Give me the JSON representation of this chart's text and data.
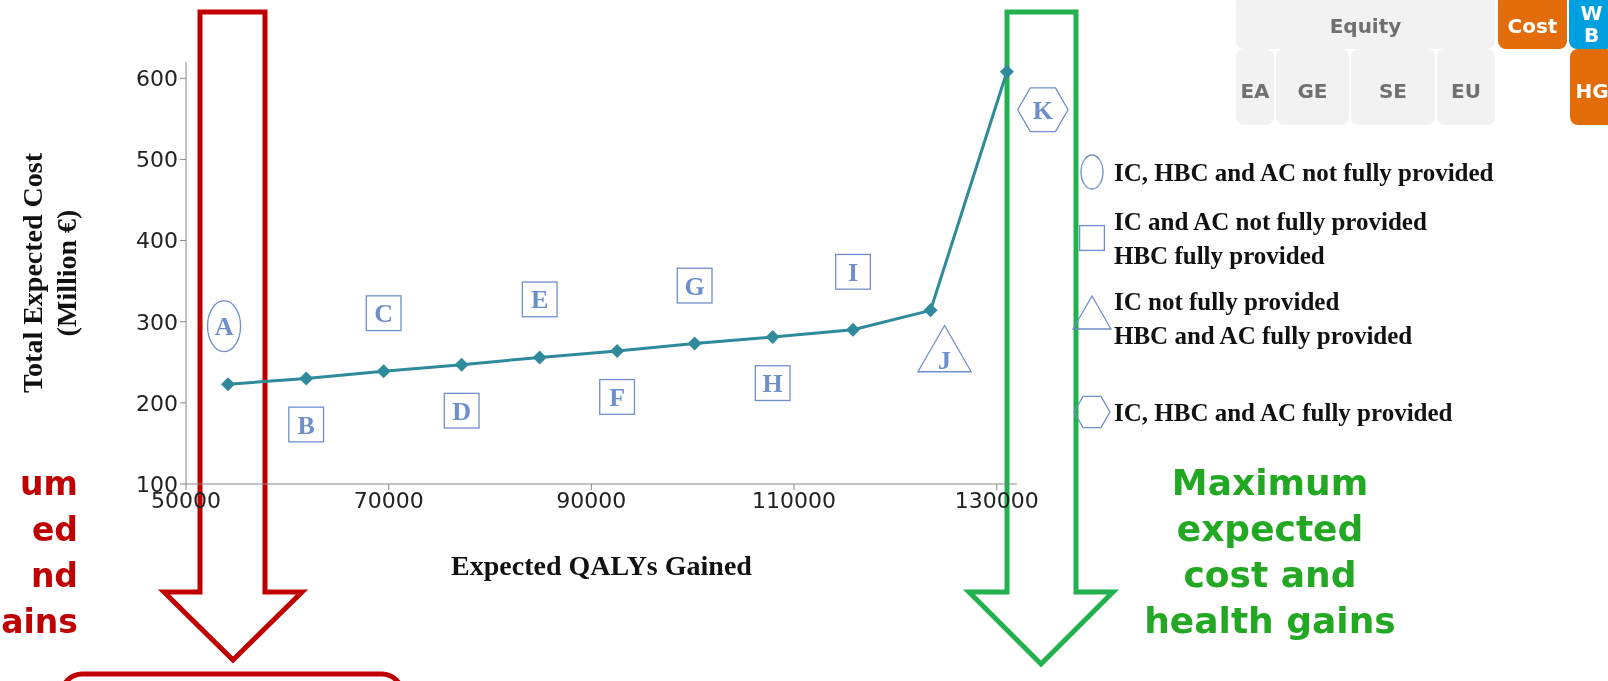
{
  "chart_data": {
    "type": "line",
    "x": [
      54150,
      61860,
      69500,
      77200,
      84900,
      92540,
      100190,
      107890,
      115820,
      123470,
      131000
    ],
    "series": [
      {
        "color": "#2f8a9c",
        "values": [
          223,
          230,
          239,
          247,
          256,
          264,
          273,
          281,
          290,
          314,
          608
        ]
      }
    ],
    "marker": "diamond",
    "xlabel": "Expected QALYs Gained",
    "ylabel": "Total Expected Cost\n(Million €)",
    "xlim": [
      50000,
      132000
    ],
    "xticks": [
      50000,
      70000,
      90000,
      110000,
      130000
    ],
    "ylim": [
      100,
      620
    ],
    "yticks": [
      100,
      200,
      300,
      400,
      500,
      600
    ],
    "annotations": [
      {
        "text": "A",
        "x": 54150,
        "y": 223
      },
      {
        "text": "B",
        "x": 61860,
        "y": 230
      },
      {
        "text": "C",
        "x": 69500,
        "y": 239
      },
      {
        "text": "D",
        "x": 77200,
        "y": 247
      },
      {
        "text": "E",
        "x": 84900,
        "y": 256
      },
      {
        "text": "F",
        "x": 92540,
        "y": 264
      },
      {
        "text": "G",
        "x": 100190,
        "y": 273
      },
      {
        "text": "H",
        "x": 107890,
        "y": 281
      },
      {
        "text": "I",
        "x": 115820,
        "y": 290
      },
      {
        "text": "J",
        "x": 123470,
        "y": 314
      },
      {
        "text": "K",
        "x": 131000,
        "y": 608
      },
      "IC, HBC and AC not fully provided",
      "IC and AC not fully provided\nHBC fully provided",
      "IC not fully provided\nHBC and AC fully provided",
      "IC, HBC and AC fully provided",
      "Maximum\nexpected\ncost and\nhealth gains",
      "um\ned\nnd\nains",
      "Equity",
      "Cost",
      "W\nB",
      "EA",
      "GE",
      "SE",
      "EU",
      "HG"
    ]
  }
}
